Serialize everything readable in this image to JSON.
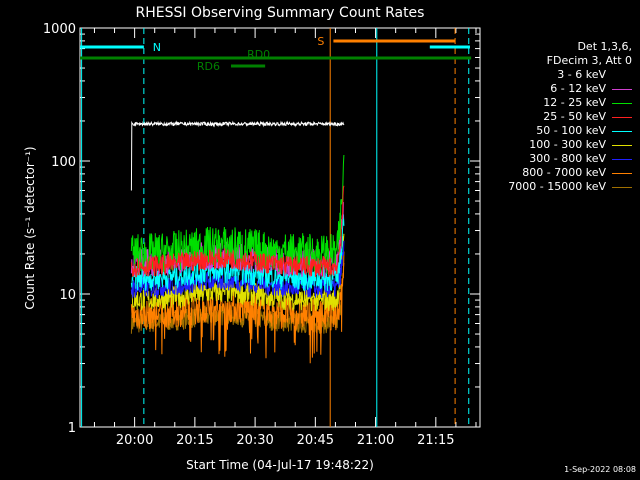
{
  "chart_data": {
    "type": "line",
    "title": "RHESSI Observing Summary Count Rates",
    "xlabel": "Start Time (04-Jul-17 19:48:22)",
    "ylabel": "Count Rate (s⁻¹ detector⁻¹)",
    "y_scale": "log",
    "ylim": [
      1,
      1000
    ],
    "xlim_minutes_after_2000": [
      -13.6,
      86.0
    ],
    "x_tick_labels": [
      "20:00",
      "20:15",
      "20:30",
      "20:45",
      "21:00",
      "21:15"
    ],
    "x_tick_minutes_after_2000": [
      0,
      15,
      30,
      45,
      60,
      75
    ],
    "y_tick_labels": [
      "1",
      "10",
      "100",
      "1000"
    ],
    "y_tick_values": [
      1,
      10,
      100,
      1000
    ],
    "grid": false,
    "legend_position": "right",
    "legend_header": [
      "Det 1,3,6,",
      "FDecim 3, Att 0"
    ],
    "series": [
      {
        "name": "3 - 6 keV",
        "color": "#000000",
        "level": 190
      },
      {
        "name": "6 - 12 keV",
        "color": "#d040d0",
        "level": 17
      },
      {
        "name": "12 - 25 keV",
        "color": "#00e000",
        "level": 20
      },
      {
        "name": "25 - 50 keV",
        "color": "#ff2020",
        "level": 16
      },
      {
        "name": "50 - 100 keV",
        "color": "#00ffff",
        "level": 13
      },
      {
        "name": "100 - 300 keV",
        "color": "#e0e000",
        "level": 9
      },
      {
        "name": "300 - 800 keV",
        "color": "#2020ff",
        "level": 11
      },
      {
        "name": "800 - 7000 keV",
        "color": "#ff8000",
        "level": 7
      },
      {
        "name": "7000 - 15000 keV",
        "color": "#a07000",
        "level": 6
      }
    ],
    "data_start_minute": -0.8,
    "data_end_minute": 52.1,
    "flare_rise_minute": 50.0,
    "annotations": {
      "N_label": "N",
      "S_label": "S",
      "RD0_label": "RD0",
      "RD6_label": "RD6"
    },
    "colors": {
      "background": "#000000",
      "axes": "#ffffff",
      "night": "#00ffff",
      "saa": "#ff8000",
      "decim": "#008000"
    }
  },
  "footer": {
    "date_stamp": "1-Sep-2022 08:08"
  }
}
